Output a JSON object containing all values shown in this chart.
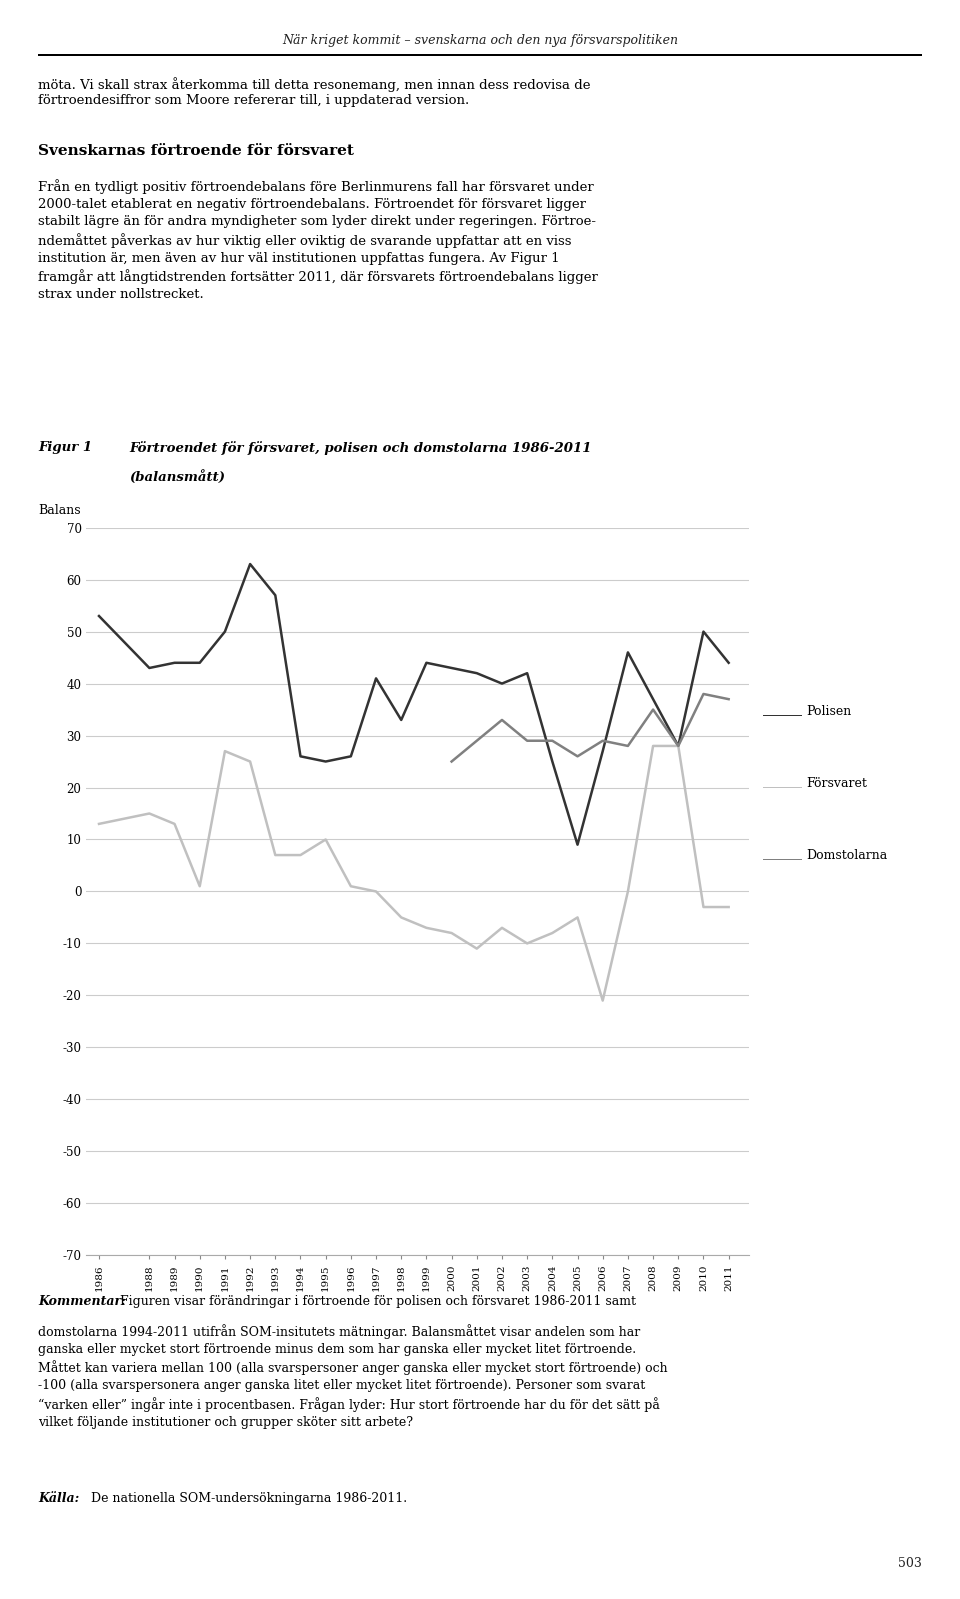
{
  "years": [
    1986,
    1988,
    1989,
    1990,
    1991,
    1992,
    1993,
    1994,
    1995,
    1996,
    1997,
    1998,
    1999,
    2000,
    2001,
    2002,
    2003,
    2004,
    2005,
    2006,
    2007,
    2008,
    2009,
    2010,
    2011
  ],
  "polisen": [
    53,
    43,
    44,
    44,
    50,
    63,
    57,
    26,
    25,
    26,
    41,
    33,
    44,
    43,
    42,
    40,
    42,
    25,
    9,
    27,
    46,
    37,
    28,
    50,
    44
  ],
  "forsvaret": [
    13,
    15,
    13,
    1,
    27,
    25,
    7,
    7,
    10,
    1,
    0,
    -5,
    -7,
    -8,
    -11,
    -7,
    -10,
    -8,
    -5,
    -21,
    0,
    28,
    28,
    -3,
    -3
  ],
  "domstolarna": [
    null,
    null,
    null,
    null,
    null,
    null,
    null,
    null,
    null,
    null,
    null,
    null,
    null,
    25,
    29,
    33,
    29,
    29,
    26,
    29,
    28,
    35,
    28,
    38,
    37
  ],
  "polisen_color": "#333333",
  "forsvaret_color": "#c0c0c0",
  "domstolarna_color": "#808080",
  "ylim_min": -70,
  "ylim_max": 70,
  "background_color": "#ffffff",
  "header_text": "När kriget kommit – svenskarna och den nya försvarspolitiken",
  "page_number": "503"
}
